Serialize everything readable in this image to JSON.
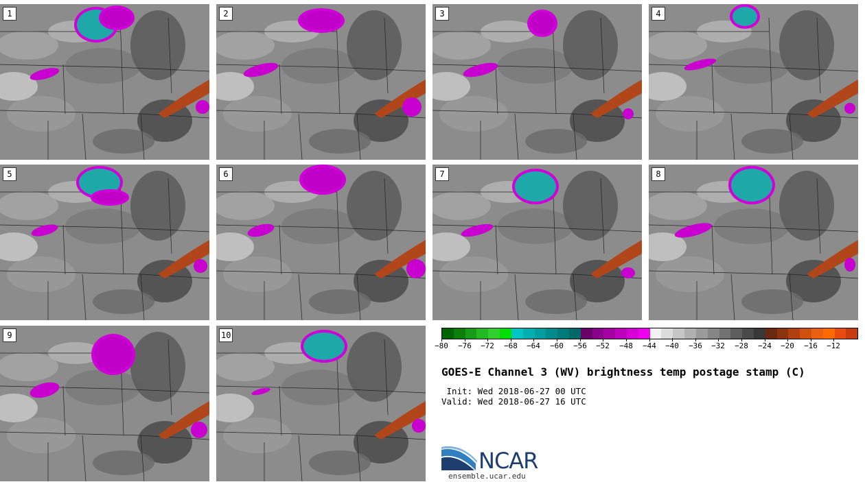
{
  "panels": [
    {
      "label": "1"
    },
    {
      "label": "2"
    },
    {
      "label": "3"
    },
    {
      "label": "4"
    },
    {
      "label": "5"
    },
    {
      "label": "6"
    },
    {
      "label": "7"
    },
    {
      "label": "8"
    },
    {
      "label": "9"
    },
    {
      "label": "10"
    }
  ],
  "colorbar": {
    "ticks": [
      "−80",
      "−76",
      "−72",
      "−68",
      "−64",
      "−60",
      "−56",
      "−52",
      "−48",
      "−44",
      "−40",
      "−36",
      "−32",
      "−28",
      "−24",
      "−20",
      "−16",
      "−12"
    ],
    "colors": [
      "#006400",
      "#0a7f0a",
      "#179c17",
      "#22b922",
      "#30d030",
      "#00e000",
      "#00c4c4",
      "#00b0b0",
      "#009e9e",
      "#008c8c",
      "#007a7a",
      "#006868",
      "#6a006a",
      "#8a008a",
      "#a400a4",
      "#bc00bc",
      "#d400d4",
      "#ee00ee",
      "#f2f2f2",
      "#dcdcdc",
      "#c6c6c6",
      "#b0b0b0",
      "#9a9a9a",
      "#868686",
      "#727272",
      "#5e5e5e",
      "#4a4a4a",
      "#383838",
      "#6a2a10",
      "#8c3410",
      "#b04010",
      "#d05010",
      "#e86010",
      "#ff6a00",
      "#e84a10",
      "#c83c10"
    ]
  },
  "title": "GOES-E Channel 3 (WV) brightness temp postage stamp (C)",
  "init": " Init: Wed 2018-06-27 00 UTC",
  "valid": "Valid: Wed 2018-06-27 16 UTC",
  "logo": {
    "text": "NCAR",
    "url": "ensemble.ucar.edu"
  }
}
